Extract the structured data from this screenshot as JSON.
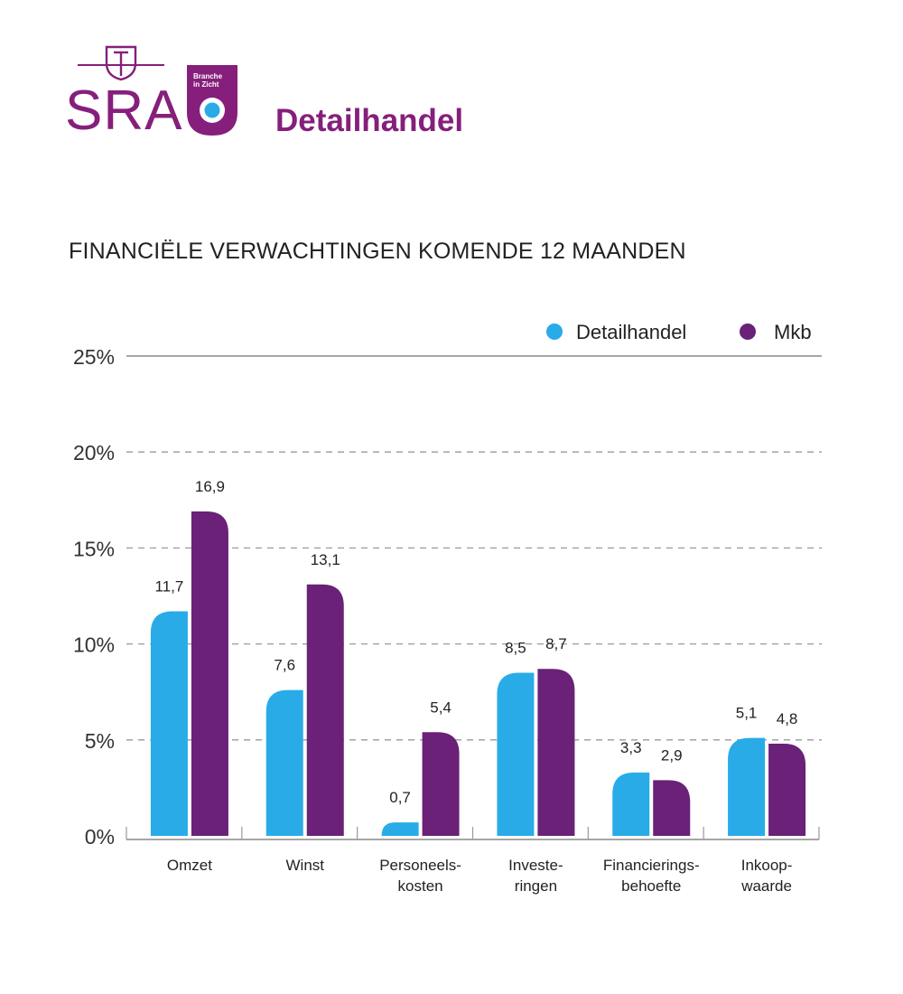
{
  "header": {
    "logo_text": "SRA",
    "badge_line1": "Branche",
    "badge_line2": "in Zicht",
    "brand_title": "Detailhandel"
  },
  "colors": {
    "brand_purple": "#861f7b",
    "detailhandel": "#29abe8",
    "mkb": "#6a2177",
    "gridline": "#999999",
    "text": "#222222"
  },
  "chart_data": {
    "type": "bar",
    "title": "FINANCIËLE VERWACHTINGEN KOMENDE 12 MAANDEN",
    "ylim": [
      0,
      25
    ],
    "yticks": [
      0,
      5,
      10,
      15,
      20,
      25
    ],
    "ytick_labels": [
      "0%",
      "5%",
      "10%",
      "15%",
      "20%",
      "25%"
    ],
    "legend_position": "top-right",
    "grid": "dashed horizontal",
    "categories": [
      [
        "Omzet"
      ],
      [
        "Winst"
      ],
      [
        "Personeels-",
        "kosten"
      ],
      [
        "Investe-",
        "ringen"
      ],
      [
        "Financierings-",
        "behoefte"
      ],
      [
        "Inkoop-",
        "waarde"
      ]
    ],
    "series": [
      {
        "name": "Detailhandel",
        "color": "#29abe8",
        "values": [
          11.7,
          7.6,
          0.7,
          8.5,
          3.3,
          5.1
        ],
        "labels": [
          "11,7",
          "7,6",
          "0,7",
          "8,5",
          "3,3",
          "5,1"
        ]
      },
      {
        "name": "Mkb",
        "color": "#6a2177",
        "values": [
          16.9,
          13.1,
          5.4,
          8.7,
          2.9,
          4.8
        ],
        "labels": [
          "16,9",
          "13,1",
          "5,4",
          "8,7",
          "2,9",
          "4,8"
        ]
      }
    ]
  }
}
